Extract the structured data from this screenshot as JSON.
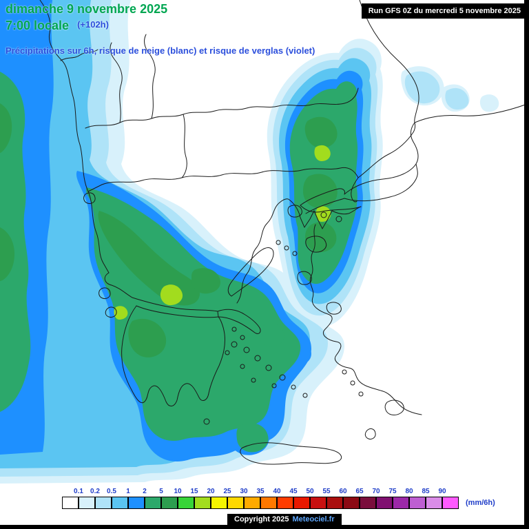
{
  "header": {
    "date": "dimanche 9 novembre 2025",
    "time": "7:00 locale",
    "offset": "(+102h)",
    "subtitle": "Précipitations sur 6h, risque de neige (blanc) et risque de verglas (violet)"
  },
  "run_box": {
    "label": "Run GFS 0Z du mercredi 5 novembre 2025"
  },
  "legend": {
    "unit": "(mm/6h)",
    "ticks": [
      "0.1",
      "0.2",
      "0.5",
      "1",
      "2",
      "5",
      "10",
      "15",
      "20",
      "25",
      "30",
      "35",
      "40",
      "45",
      "50",
      "55",
      "60",
      "65",
      "70",
      "75",
      "80",
      "85",
      "90"
    ],
    "box_colors": [
      "#FFFFFF",
      "#D8F1FB",
      "#AFE3F8",
      "#5BC5F2",
      "#1E90FF",
      "#2CA86B",
      "#2D9E4F",
      "#38D438",
      "#A2DC1E",
      "#F5F500",
      "#FFD800",
      "#FFAA00",
      "#FF7800",
      "#FF3C00",
      "#E81800",
      "#C81010",
      "#AA0E0E",
      "#8C0A14",
      "#7A0E3C",
      "#801070",
      "#9C28A8",
      "#BE5ED2",
      "#DA8CE8",
      "#FF5AFF"
    ]
  },
  "footer": {
    "copyright": "Copyright 2025",
    "site": "Meteociel.fr"
  },
  "colors": {
    "header_green": "#00A651",
    "header_blue": "#2C4FDC",
    "tick_blue": "#1E3CC8",
    "coast_line": "#1a1a1a"
  }
}
